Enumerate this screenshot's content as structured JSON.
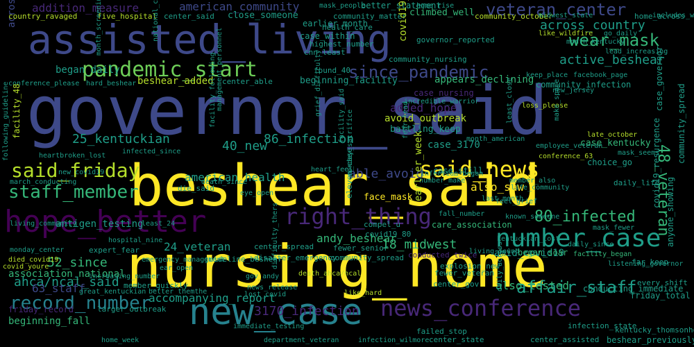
{
  "palette": {
    "yellow": "#fde725",
    "lime": "#b5de2b",
    "green": "#6ece58",
    "teal_green": "#35b779",
    "teal": "#1f9e89",
    "cyan_blue": "#26828e",
    "blue": "#31688e",
    "indigo": "#3e4989",
    "purple": "#482878",
    "dark_purple": "#440154"
  },
  "words": [
    {
      "text": "governor_said",
      "color": "indigo",
      "rot": 0
    },
    {
      "text": "beshear_said",
      "color": "yellow",
      "rot": 0
    },
    {
      "text": "nursing_home",
      "color": "yellow",
      "rot": 0
    },
    {
      "text": "assisted_living",
      "color": "indigo",
      "rot": 0
    },
    {
      "text": "hope_better",
      "color": "dark_purple",
      "rot": 0
    },
    {
      "text": "new_case",
      "color": "cyan_blue",
      "rot": 0
    },
    {
      "text": "news_conference",
      "color": "purple",
      "rot": 0
    },
    {
      "text": "number_case",
      "color": "teal",
      "rot": 0
    },
    {
      "text": "right_thing",
      "color": "purple",
      "rot": 0
    },
    {
      "text": "pandemic_start",
      "color": "green",
      "rot": 0
    },
    {
      "text": "record_number",
      "color": "cyan_blue",
      "rot": 0
    },
    {
      "text": "said_news",
      "color": "yellow",
      "rot": 0
    },
    {
      "text": "said_friday",
      "color": "lime",
      "rot": 0
    },
    {
      "text": "staff_member",
      "color": "teal_green",
      "rot": 0
    },
    {
      "text": "veteran_center",
      "color": "indigo",
      "rot": 0
    },
    {
      "text": "wear_mask",
      "color": "teal_green",
      "rot": 0
    },
    {
      "text": "since_pandemic",
      "color": "indigo",
      "rot": 0
    },
    {
      "text": "affair_staff",
      "color": "teal",
      "rot": 0
    },
    {
      "text": "80_infected",
      "color": "teal_green",
      "rot": 0
    },
    {
      "text": "3170_infection",
      "color": "purple",
      "rot": 0
    },
    {
      "text": "48_veteran",
      "color": "teal_green",
      "rot": 90
    },
    {
      "text": "across_country",
      "color": "teal",
      "rot": 0
    },
    {
      "text": "active_beshear",
      "color": "teal",
      "rot": 0
    },
    {
      "text": "addition_measure",
      "color": "purple",
      "rot": 0
    },
    {
      "text": "american_community",
      "color": "indigo",
      "rot": 0
    },
    {
      "text": "american_health",
      "color": "teal",
      "rot": 0
    },
    {
      "text": "across_american",
      "color": "indigo",
      "rot": 270
    },
    {
      "text": "86_infection",
      "color": "teal",
      "rot": 0
    },
    {
      "text": "25_kentuckian",
      "color": "teal",
      "rot": 0
    },
    {
      "text": "40_new",
      "color": "teal",
      "rot": 0
    },
    {
      "text": "able_avoid",
      "color": "indigo",
      "rot": 0
    },
    {
      "text": "also_saw",
      "color": "yellow",
      "rot": 0
    },
    {
      "text": "also_tested",
      "color": "teal_green",
      "rot": 0
    },
    {
      "text": "ahca/ncal_said",
      "color": "teal",
      "rot": 0
    },
    {
      "text": "accompanying_report",
      "color": "teal",
      "rot": 0
    },
    {
      "text": "beginning_fall",
      "color": "teal_green",
      "rot": 0
    },
    {
      "text": "association_national",
      "color": "teal_green",
      "rot": 0
    },
    {
      "text": "63_staff",
      "color": "indigo",
      "rot": 0
    },
    {
      "text": "52_since",
      "color": "teal_green",
      "rot": 0
    },
    {
      "text": "24_veteran",
      "color": "teal",
      "rot": 0
    },
    {
      "text": "18_midwest",
      "color": "teal_green",
      "rot": 0
    },
    {
      "text": "andy_beshear",
      "color": "teal_green",
      "rot": 0
    },
    {
      "text": "amid_covid19",
      "color": "teal",
      "rot": 0
    },
    {
      "text": "antigen_testing",
      "color": "teal",
      "rot": 0
    },
    {
      "text": "added_hope",
      "color": "purple",
      "rot": 0
    },
    {
      "text": "avoid_outbreak",
      "color": "lime",
      "rot": 0
    },
    {
      "text": "battling_keep",
      "color": "teal",
      "rot": 0
    },
    {
      "text": "case_3170",
      "color": "teal",
      "rot": 0
    },
    {
      "text": "beshear_added",
      "color": "lime",
      "rot": 0
    },
    {
      "text": "appears_declining",
      "color": "teal_green",
      "rot": 0
    },
    {
      "text": "began_daily",
      "color": "teal",
      "rot": 0
    },
    {
      "text": "began_soar",
      "color": "teal_green",
      "rot": 0
    },
    {
      "text": "case_kentucky",
      "color": "teal_green",
      "rot": 0
    },
    {
      "text": "case_still",
      "color": "teal",
      "rot": 0
    },
    {
      "text": "care_association",
      "color": "teal_green",
      "rot": 0
    },
    {
      "text": "center_gov",
      "color": "teal",
      "rot": 0
    },
    {
      "text": "center_spread",
      "color": "teal",
      "rot": 0
    },
    {
      "text": "center_state",
      "color": "teal",
      "rot": 0
    },
    {
      "text": "center_assisted",
      "color": "teal",
      "rot": 0
    },
    {
      "text": "beshear_previously",
      "color": "teal",
      "rot": 0
    },
    {
      "text": "climbed_well",
      "color": "teal_green",
      "rot": 0
    },
    {
      "text": "close_someone",
      "color": "teal",
      "rot": 0
    },
    {
      "text": "better_statement",
      "color": "teal",
      "rot": 0
    },
    {
      "text": "case_within",
      "color": "teal",
      "rot": 0
    },
    {
      "text": "cnn_least",
      "color": "teal",
      "rot": 0
    },
    {
      "text": "earlier_month",
      "color": "teal",
      "rot": 0
    },
    {
      "text": "beginning_facility",
      "color": "teal",
      "rot": 0
    },
    {
      "text": "center_able",
      "color": "teal",
      "rot": 0
    },
    {
      "text": "community_infection",
      "color": "teal",
      "rot": 0
    },
    {
      "text": "case_nursing",
      "color": "purple",
      "rot": 0
    },
    {
      "text": "face_mask",
      "color": "yellow",
      "rot": 0
    },
    {
      "text": "choice_go",
      "color": "teal",
      "rot": 0
    },
    {
      "text": "daily_life",
      "color": "teal",
      "rot": 0
    },
    {
      "text": "die_said",
      "color": "teal",
      "rot": 0
    },
    {
      "text": "conducting_immediate",
      "color": "teal",
      "rot": 0
    },
    {
      "text": "friday_total",
      "color": "teal",
      "rot": 0
    },
    {
      "text": "every_shift",
      "color": "teal",
      "rot": 0
    },
    {
      "text": "fall_number",
      "color": "teal",
      "rot": 0
    },
    {
      "text": "failed_stop",
      "color": "teal",
      "rot": 0
    },
    {
      "text": "fewer_veteran",
      "color": "teal",
      "rot": 0
    },
    {
      "text": "explosion_new",
      "color": "teal",
      "rot": 0
    },
    {
      "text": "conducted_twice",
      "color": "purple",
      "rot": 0
    },
    {
      "text": "disaster_emergency",
      "color": "teal",
      "rot": 0
    },
    {
      "text": "community_spread",
      "color": "teal",
      "rot": 0
    },
    {
      "text": "fewer_senior",
      "color": "teal",
      "rot": 0
    },
    {
      "text": "guideline_beshear",
      "color": "teal",
      "rot": 0
    },
    {
      "text": "covid19_80",
      "color": "teal",
      "rot": 0
    },
    {
      "text": "compel_u",
      "color": "teal",
      "rot": 0
    },
    {
      "text": "expert_fear",
      "color": "teal",
      "rot": 0
    },
    {
      "text": "eye_open",
      "color": "teal",
      "rot": 0
    },
    {
      "text": "ear_open",
      "color": "teal",
      "rot": 0
    },
    {
      "text": "death_since",
      "color": "teal",
      "rot": 0
    },
    {
      "text": "country_ravaged",
      "color": "lime",
      "rot": 0
    },
    {
      "text": "five_hospital",
      "color": "lime",
      "rot": 0
    },
    {
      "text": "center_said",
      "color": "teal",
      "rot": 0
    },
    {
      "text": "community_matter",
      "color": "teal",
      "rot": 0
    },
    {
      "text": "community_october",
      "color": "lime",
      "rot": 0
    },
    {
      "text": "home_across",
      "color": "teal",
      "rot": 0
    },
    {
      "text": "health_care",
      "color": "teal",
      "rot": 0
    },
    {
      "text": "highest_number",
      "color": "teal",
      "rot": 0
    },
    {
      "text": "community_nursing",
      "color": "teal",
      "rot": 0
    },
    {
      "text": "governor_reported",
      "color": "teal",
      "rot": 0
    },
    {
      "text": "found_40",
      "color": "teal",
      "rot": 0
    },
    {
      "text": "conference_please",
      "color": "teal",
      "rot": 0
    },
    {
      "text": "hard_beshear",
      "color": "teal",
      "rot": 0
    },
    {
      "text": "keep_place",
      "color": "teal",
      "rot": 0
    },
    {
      "text": "facebook_page",
      "color": "teal",
      "rot": 0
    },
    {
      "text": "incredible_warrior",
      "color": "teal",
      "rot": 0
    },
    {
      "text": "loss_please",
      "color": "lime",
      "rot": 0
    },
    {
      "text": "late_october",
      "color": "lime",
      "rot": 0
    },
    {
      "text": "conference_63",
      "color": "lime",
      "rot": 0
    },
    {
      "text": "employee_veteran",
      "color": "teal",
      "rot": 0
    },
    {
      "text": "infected_since",
      "color": "teal",
      "rot": 0
    },
    {
      "text": "month_american",
      "color": "teal",
      "rot": 0
    },
    {
      "text": "heart_feel",
      "color": "teal",
      "rot": 0
    },
    {
      "text": "mask_seems",
      "color": "teal",
      "rot": 0
    },
    {
      "text": "infection_began",
      "color": "teal",
      "rot": 0
    },
    {
      "text": "number_make",
      "color": "teal",
      "rot": 0
    },
    {
      "text": "life_community",
      "color": "teal",
      "rot": 0
    },
    {
      "text": "new_covid19",
      "color": "teal",
      "rot": 0
    },
    {
      "text": "heartbroken_lost",
      "color": "teal",
      "rot": 0
    },
    {
      "text": "march_conducting",
      "color": "teal",
      "rot": 0
    },
    {
      "text": "living_community",
      "color": "teal",
      "rot": 0
    },
    {
      "text": "least_24",
      "color": "teal",
      "rot": 0
    },
    {
      "text": "hospital_nine",
      "color": "teal",
      "rot": 0
    },
    {
      "text": "monday_center",
      "color": "teal",
      "rot": 0
    },
    {
      "text": "covid_youre",
      "color": "lime",
      "rot": 0
    },
    {
      "text": "died_covid19",
      "color": "lime",
      "rot": 0
    },
    {
      "text": "increasing_number",
      "color": "teal",
      "rot": 0
    },
    {
      "text": "great_kentuckian",
      "color": "teal",
      "rot": 0
    },
    {
      "text": "emergency_management",
      "color": "teal",
      "rot": 0
    },
    {
      "text": "mask_fewer",
      "color": "teal",
      "rot": 0
    },
    {
      "text": "daily_since",
      "color": "teal",
      "rot": 0
    },
    {
      "text": "facility_began",
      "color": "teal_green",
      "rot": 0
    },
    {
      "text": "listening_governor",
      "color": "teal",
      "rot": 0
    },
    {
      "text": "far_keep",
      "color": "teal",
      "rot": 0
    },
    {
      "text": "gov_andy",
      "color": "teal",
      "rot": 0
    },
    {
      "text": "news_release",
      "color": "teal",
      "rot": 0
    },
    {
      "text": "lost_covid",
      "color": "teal",
      "rot": 0
    },
    {
      "text": "death_ahca/ncal",
      "color": "lime",
      "rot": 0
    },
    {
      "text": "member_quickly",
      "color": "teal",
      "rot": 0
    },
    {
      "text": "better_themthe",
      "color": "teal",
      "rot": 0
    },
    {
      "text": "friday_record",
      "color": "purple",
      "rot": 0
    },
    {
      "text": "larger_outbreak",
      "color": "teal",
      "rot": 0
    },
    {
      "text": "immediate_testing",
      "color": "teal",
      "rot": 0
    },
    {
      "text": "like_hard",
      "color": "lime",
      "rot": 0
    },
    {
      "text": "infection_state",
      "color": "teal",
      "rot": 0
    },
    {
      "text": "home_week",
      "color": "teal",
      "rot": 0
    },
    {
      "text": "department_veteran",
      "color": "teal",
      "rot": 0
    },
    {
      "text": "infection_wilmore",
      "color": "teal",
      "rot": 0
    },
    {
      "text": "kentucky_thomsonhood",
      "color": "teal",
      "rot": 0
    },
    {
      "text": "kentuckian_lost",
      "color": "teal",
      "rot": 0
    },
    {
      "text": "known_someone",
      "color": "teal",
      "rot": 0
    },
    {
      "text": "living_found",
      "color": "teal",
      "rot": 0
    },
    {
      "text": "feel_grief",
      "color": "teal",
      "rot": 0
    },
    {
      "text": "member_also",
      "color": "teal",
      "rot": 0
    },
    {
      "text": "last_month",
      "color": "teal",
      "rot": 0
    },
    {
      "text": "mask_people",
      "color": "teal",
      "rot": 0
    },
    {
      "text": "home_rise",
      "color": "teal",
      "rot": 0
    },
    {
      "text": "midwest_state",
      "color": "teal",
      "rot": 0
    },
    {
      "text": "includes_wearing",
      "color": "teal",
      "rot": 0
    },
    {
      "text": "like_wildfire",
      "color": "lime",
      "rot": 0
    },
    {
      "text": "go_daily",
      "color": "teal",
      "rot": 0
    },
    {
      "text": "month_kentucky",
      "color": "teal",
      "rot": 0
    },
    {
      "text": "lead_increasing",
      "color": "teal",
      "rot": 0
    },
    {
      "text": "new_jersey",
      "color": "teal",
      "rot": 0
    },
    {
      "text": "fear_lead",
      "color": "teal",
      "rot": 270
    },
    {
      "text": "covid19_case",
      "color": "lime",
      "rot": 270
    },
    {
      "text": "facility_48",
      "color": "lime",
      "rot": 270
    },
    {
      "text": "earlier_week",
      "color": "lime",
      "rot": 270
    },
    {
      "text": "eleven_case",
      "color": "teal",
      "rot": 270
    },
    {
      "text": "case_governor",
      "color": "teal",
      "rot": 270
    },
    {
      "text": "anyone_showing",
      "color": "teal",
      "rot": 270
    },
    {
      "text": "covid19_resurgence",
      "color": "teal",
      "rot": 270
    },
    {
      "text": "community_spread",
      "color": "teal",
      "rot": 270
    },
    {
      "text": "facility_following",
      "color": "teal",
      "rot": 270
    },
    {
      "text": "management_personnel",
      "color": "teal",
      "rot": 270
    },
    {
      "text": "grief_difficulty",
      "color": "teal",
      "rot": 270
    },
    {
      "text": "month_screening",
      "color": "teal",
      "rot": 270
    },
    {
      "text": "national_center",
      "color": "teal",
      "rot": 270
    },
    {
      "text": "least_close",
      "color": "teal",
      "rot": 270
    },
    {
      "text": "make_space",
      "color": "teal",
      "rot": 270
    },
    {
      "text": "daily_across",
      "color": "teal",
      "rot": 270
    },
    {
      "text": "monday_sacrifice",
      "color": "teal",
      "rot": 270
    },
    {
      "text": "following_guideline",
      "color": "teal",
      "rot": 270
    },
    {
      "text": "facility_said",
      "color": "teal",
      "rot": 270
    },
    {
      "text": "difficulty_thers",
      "color": "teal",
      "rot": 270
    },
    {
      "text": "fear_lost",
      "color": "teal",
      "rot": 270
    },
    {
      "text": "mutter_state",
      "color": "teal",
      "rot": 270
    }
  ]
}
